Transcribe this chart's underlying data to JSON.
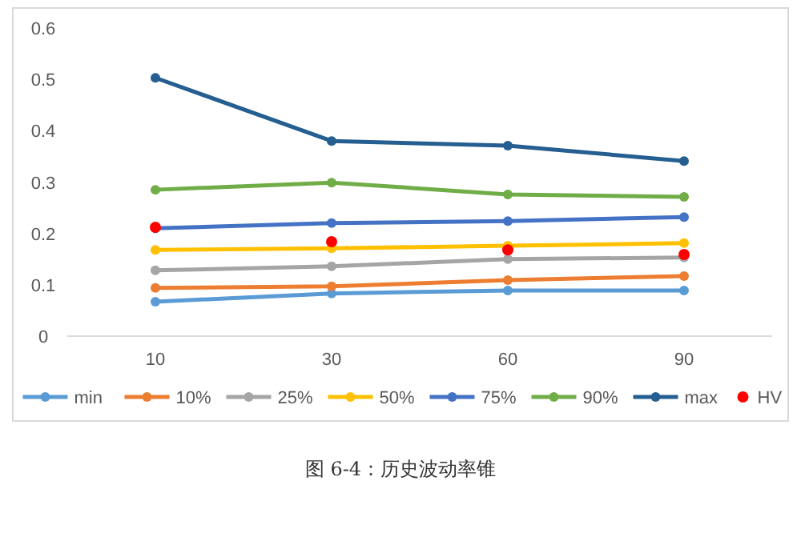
{
  "chart_data": {
    "type": "line",
    "title": null,
    "categories": [
      "10",
      "30",
      "60",
      "90"
    ],
    "series": [
      {
        "name": "min",
        "color": "#5b9bd5",
        "values": [
          0.067,
          0.083,
          0.089,
          0.089
        ]
      },
      {
        "name": "10%",
        "color": "#ed7d31",
        "values": [
          0.094,
          0.097,
          0.109,
          0.117
        ]
      },
      {
        "name": "25%",
        "color": "#a5a5a5",
        "values": [
          0.128,
          0.136,
          0.15,
          0.153
        ]
      },
      {
        "name": "50%",
        "color": "#ffc000",
        "values": [
          0.168,
          0.171,
          0.176,
          0.181
        ]
      },
      {
        "name": "75%",
        "color": "#4472c4",
        "values": [
          0.21,
          0.22,
          0.224,
          0.232
        ]
      },
      {
        "name": "90%",
        "color": "#70ad47",
        "values": [
          0.285,
          0.299,
          0.276,
          0.271
        ]
      },
      {
        "name": "max",
        "color": "#255e91",
        "values": [
          0.503,
          0.38,
          0.371,
          0.341
        ]
      },
      {
        "name": "HV",
        "type": "scatter",
        "color": "#ff0000",
        "values": [
          0.212,
          0.184,
          0.168,
          0.159
        ]
      }
    ],
    "ylim": [
      0,
      0.6
    ],
    "yticks": [
      0,
      0.1,
      0.2,
      0.3,
      0.4,
      0.5,
      0.6
    ],
    "grid": false,
    "legend": "bottom",
    "marker": "circle",
    "line_style": "solid",
    "annotations": [
      "图 6-4：历史波动率锥"
    ]
  }
}
